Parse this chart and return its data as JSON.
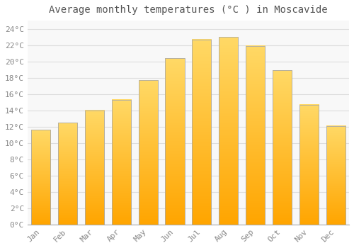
{
  "title": "Average monthly temperatures (°C ) in Moscavide",
  "months": [
    "Jan",
    "Feb",
    "Mar",
    "Apr",
    "May",
    "Jun",
    "Jul",
    "Aug",
    "Sep",
    "Oct",
    "Nov",
    "Dec"
  ],
  "values": [
    11.6,
    12.5,
    14.0,
    15.3,
    17.7,
    20.4,
    22.7,
    23.0,
    21.9,
    18.9,
    14.7,
    12.1
  ],
  "bar_color_top": "#FFD966",
  "bar_color_bottom": "#FFA500",
  "bar_edge_color": "#AAAAAA",
  "background_color": "#FFFFFF",
  "plot_bg_color": "#F8F8F8",
  "grid_color": "#DDDDDD",
  "ylim": [
    0,
    25
  ],
  "yticks": [
    0,
    2,
    4,
    6,
    8,
    10,
    12,
    14,
    16,
    18,
    20,
    22,
    24
  ],
  "title_fontsize": 10,
  "tick_fontsize": 8,
  "title_color": "#555555",
  "tick_color": "#888888"
}
